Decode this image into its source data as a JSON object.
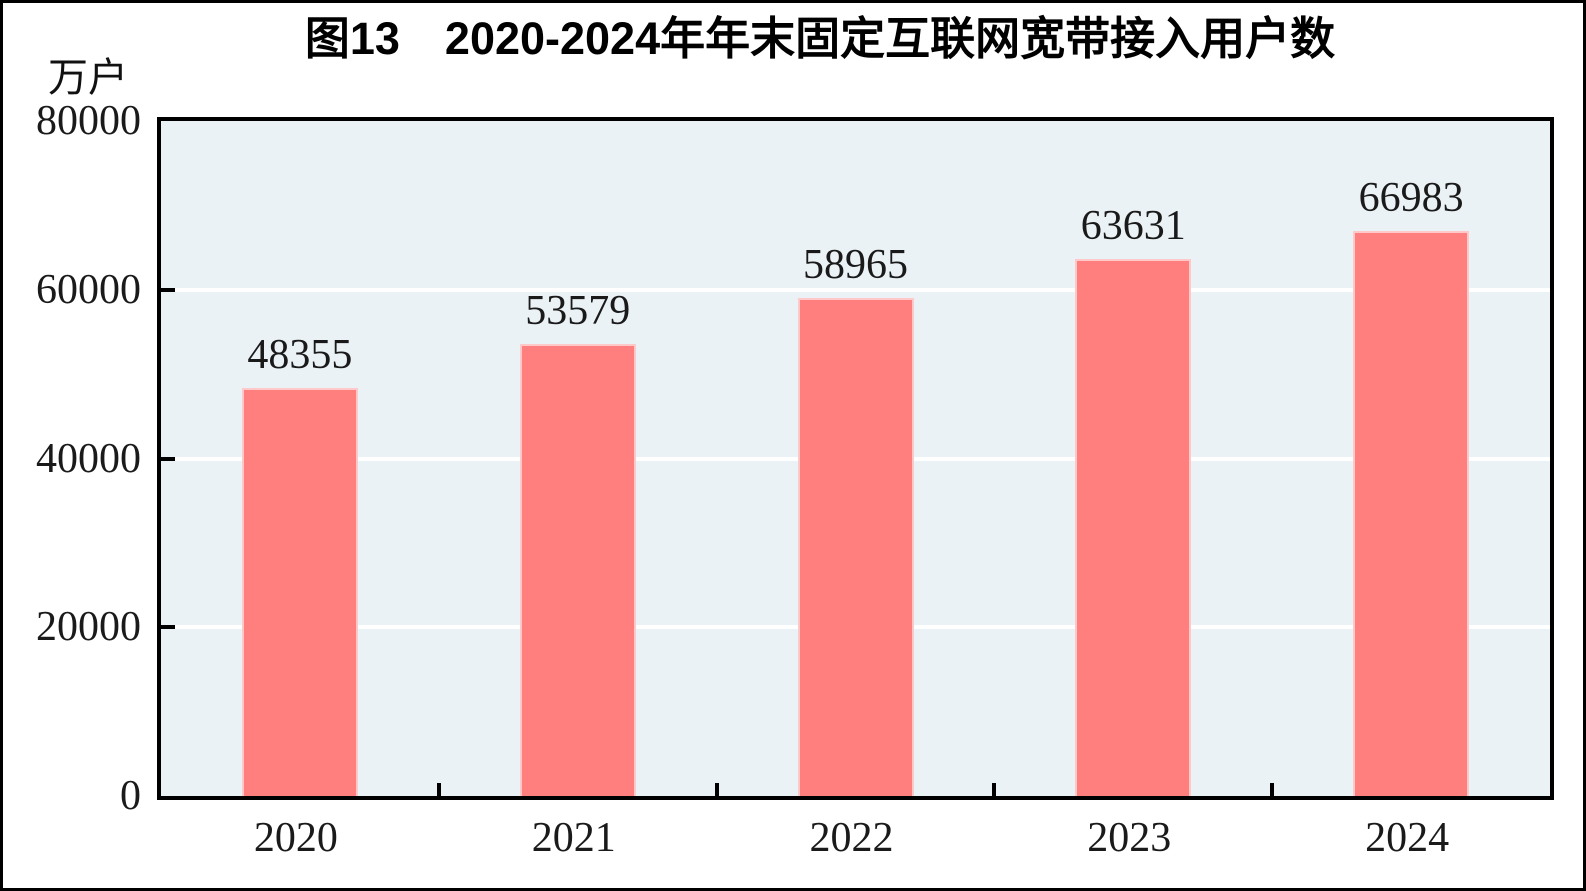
{
  "figure": {
    "title": "图13　2020-2024年年末固定互联网宽带接入用户数",
    "unit_label": "万户"
  },
  "chart_data": {
    "type": "bar",
    "title": "图13　2020-2024年年末固定互联网宽带接入用户数",
    "categories": [
      "2020",
      "2021",
      "2022",
      "2023",
      "2024"
    ],
    "values": [
      48355,
      53579,
      58965,
      63631,
      66983
    ],
    "data_labels": [
      "48355",
      "53579",
      "58965",
      "63631",
      "66983"
    ],
    "ylabel": "万户",
    "ylim": [
      0,
      80000
    ],
    "yticks": [
      0,
      20000,
      40000,
      60000,
      80000
    ],
    "ytick_labels": [
      "0",
      "20000",
      "40000",
      "60000",
      "80000"
    ],
    "grid": "horizontal",
    "legend": "none",
    "colors": {
      "bar_fill": "#ff7e7e",
      "bar_edge": "#ffc9c9",
      "plot_background": "#ebf2f6",
      "gridline": "#ffffff",
      "axis_frame": "#000000",
      "text": "#1a1a1a"
    }
  }
}
